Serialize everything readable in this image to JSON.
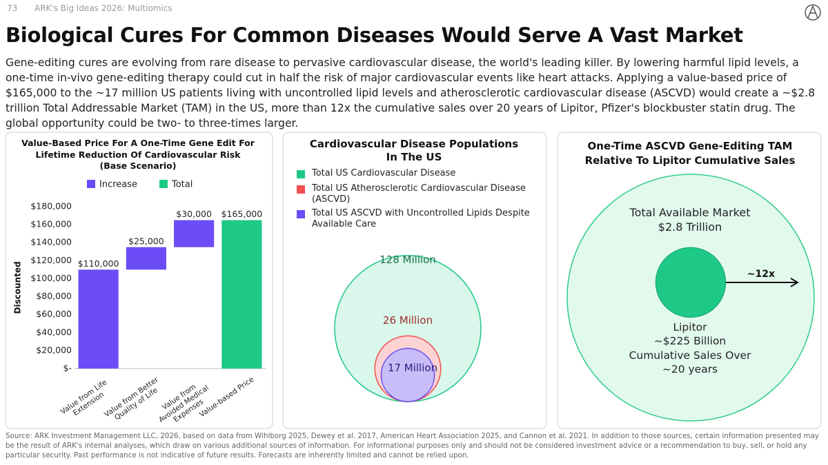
{
  "header": {
    "page_number": "73",
    "deck": "ARK's Big Ideas 2026: Multiomics",
    "title": "Biological Cures For Common Diseases Would Serve A Vast Market",
    "body": "Gene-editing cures are evolving from rare disease to pervasive cardiovascular disease, the world's leading killer. By lowering harmful lipid levels, a one-time in-vivo gene-editing therapy could cut in half the risk of major cardiovascular events like heart attacks. Applying a value-based price of $165,000 to the ~17 million US patients living with uncontrolled lipid levels and atherosclerotic cardiovascular disease (ASCVD) would create a ~$2.8 trillion Total Addressable Market (TAM) in the US, more than 12x the cumulative sales over 20 years of Lipitor, Pfizer's blockbuster statin drug. The global opportunity could be two- to three-times larger."
  },
  "chart_data": [
    {
      "type": "waterfall",
      "title": "Value-Based Price For A One-Time Gene Edit For Lifetime Reduction Of Cardiovascular Risk (Base Scenario)",
      "y_label": "Discounted",
      "categories": [
        "Value from Life Extension",
        "Value from Better Quality of Life",
        "Value from Avoided Medical Expenses",
        "Value-based Price"
      ],
      "series": [
        {
          "name": "Increase",
          "color": "#6b4cf6",
          "values": [
            110000,
            25000,
            30000,
            null
          ],
          "value_labels": [
            "$110,000",
            "$25,000",
            "$30,000",
            null
          ]
        },
        {
          "name": "Total",
          "color": "#1ec886",
          "values": [
            null,
            null,
            null,
            165000
          ],
          "value_labels": [
            null,
            null,
            null,
            "$165,000"
          ]
        }
      ],
      "ylim": [
        0,
        180000
      ],
      "yticks": [
        {
          "value": 0,
          "label": "$-"
        },
        {
          "value": 20000,
          "label": "$20,000"
        },
        {
          "value": 40000,
          "label": "$40,000"
        },
        {
          "value": 60000,
          "label": "$60,000"
        },
        {
          "value": 80000,
          "label": "$80,000"
        },
        {
          "value": 100000,
          "label": "$100,000"
        },
        {
          "value": 120000,
          "label": "$120,000"
        },
        {
          "value": 140000,
          "label": "$140,000"
        },
        {
          "value": 160000,
          "label": "$160,000"
        },
        {
          "value": 180000,
          "label": "$180,000"
        }
      ],
      "legend": "top"
    },
    {
      "type": "nested_circles",
      "title": "Cardiovascular Disease Populations In The US",
      "categories": [
        "Total US Cardiovascular Disease",
        "Total US Atherosclerotic Cardiovascular Disease (ASCVD)",
        "Total US ASCVD with Uncontrolled Lipids Despite Available Care"
      ],
      "values": [
        128,
        26,
        17
      ],
      "value_labels": [
        "128 Million",
        "26 Million",
        "17 Million"
      ],
      "colors": [
        "#1ec886",
        "#f04f4f",
        "#6b4cf6"
      ]
    },
    {
      "type": "nested_circles",
      "title": "One-Time ASCVD Gene-Editing TAM Relative To Lipitor Cumulative Sales",
      "categories": [
        "Total Available Market",
        "Lipitor"
      ],
      "values": [
        2800,
        225
      ],
      "value_labels": [
        "$2.8 Trillion",
        "~$225 Billion"
      ],
      "colors": [
        "#1ec886",
        "#1ec886"
      ],
      "annotations": {
        "lipitor_note": "Cumulative Sales Over ~20 years",
        "ratio": "~12x"
      }
    }
  ],
  "footer": {
    "source": "Source: ARK Investment Management LLC, 2026, based on data from Wihlborg 2025, Dewey et al. 2017, American Heart Association 2025, and Cannon et al. 2021. In addition to those sources, certain information presented may be the result of ARK's internal analyses, which draw on various additional sources of information. For informational purposes only and should not be considered investment advice or a recommendation to buy, sell, or hold any particular security. Past performance is not indicative of future results. Forecasts are inherently limited and cannot be relied upon."
  }
}
